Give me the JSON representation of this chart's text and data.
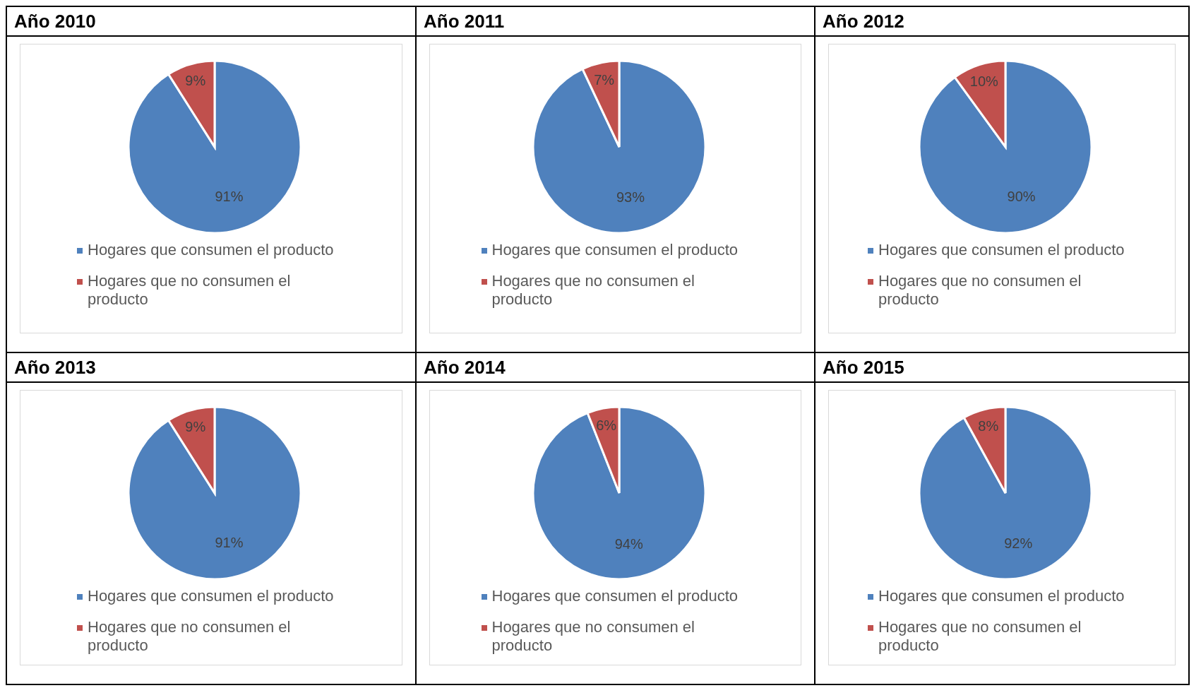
{
  "chart_data": [
    {
      "type": "pie",
      "title": "Año 2010",
      "categories": [
        "Hogares que consumen el producto",
        "Hogares que no consumen el producto"
      ],
      "values": [
        91,
        9
      ],
      "colors": [
        "#4f81bd",
        "#c0504d"
      ],
      "value_labels": [
        "91%",
        "9%"
      ],
      "legend": "bottom"
    },
    {
      "type": "pie",
      "title": "Año 2011",
      "categories": [
        "Hogares que consumen el producto",
        "Hogares que no consumen el producto"
      ],
      "values": [
        93,
        7
      ],
      "colors": [
        "#4f81bd",
        "#c0504d"
      ],
      "value_labels": [
        "93%",
        "7%"
      ],
      "legend": "bottom"
    },
    {
      "type": "pie",
      "title": "Año 2012",
      "categories": [
        "Hogares que consumen el producto",
        "Hogares que no consumen el producto"
      ],
      "values": [
        90,
        10
      ],
      "colors": [
        "#4f81bd",
        "#c0504d"
      ],
      "value_labels": [
        "90%",
        "10%"
      ],
      "legend": "bottom"
    },
    {
      "type": "pie",
      "title": "Año 2013",
      "categories": [
        "Hogares que consumen el producto",
        "Hogares que no consumen el producto"
      ],
      "values": [
        91,
        9
      ],
      "colors": [
        "#4f81bd",
        "#c0504d"
      ],
      "value_labels": [
        "91%",
        "9%"
      ],
      "legend": "bottom"
    },
    {
      "type": "pie",
      "title": "Año 2014",
      "categories": [
        "Hogares que consumen el producto",
        "Hogares que no consumen el producto"
      ],
      "values": [
        94,
        6
      ],
      "colors": [
        "#4f81bd",
        "#c0504d"
      ],
      "value_labels": [
        "94%",
        "6%"
      ],
      "legend": "bottom"
    },
    {
      "type": "pie",
      "title": "Año 2015",
      "categories": [
        "Hogares que consumen el producto",
        "Hogares que no consumen el producto"
      ],
      "values": [
        92,
        8
      ],
      "colors": [
        "#4f81bd",
        "#c0504d"
      ],
      "value_labels": [
        "92%",
        "8%"
      ],
      "legend": "bottom"
    }
  ]
}
